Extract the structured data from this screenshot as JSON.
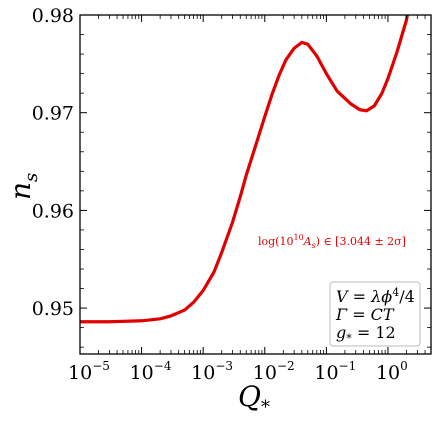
{
  "chart_data": {
    "type": "line",
    "title": "",
    "xlabel": "Q_*",
    "xlabel_main": "Q",
    "xlabel_sub": "*",
    "ylabel": "n_s",
    "ylabel_main": "n",
    "ylabel_sub": "s",
    "xscale": "log",
    "xlim": [
      1e-05,
      5
    ],
    "ylim": [
      0.9453,
      0.98
    ],
    "grid": false,
    "x_ticks": [
      {
        "base": "10",
        "exp": "−5",
        "value": 1e-05
      },
      {
        "base": "10",
        "exp": "−4",
        "value": 0.0001
      },
      {
        "base": "10",
        "exp": "−3",
        "value": 0.001
      },
      {
        "base": "10",
        "exp": "−2",
        "value": 0.01
      },
      {
        "base": "10",
        "exp": "−1",
        "value": 0.1
      },
      {
        "base": "10",
        "exp": "0",
        "value": 1
      }
    ],
    "y_ticks": [
      {
        "label": "0.95",
        "value": 0.95
      },
      {
        "label": "0.96",
        "value": 0.96
      },
      {
        "label": "0.97",
        "value": 0.97
      },
      {
        "label": "0.98",
        "value": 0.98
      }
    ],
    "series": [
      {
        "color": "#e00000",
        "points": [
          [
            1e-05,
            0.9486
          ],
          [
            3e-05,
            0.9486
          ],
          [
            0.0001,
            0.9487
          ],
          [
            0.0002,
            0.9489
          ],
          [
            0.0003,
            0.9492
          ],
          [
            0.0005,
            0.9498
          ],
          [
            0.0007,
            0.9506
          ],
          [
            0.001,
            0.9518
          ],
          [
            0.0015,
            0.9537
          ],
          [
            0.002,
            0.9557
          ],
          [
            0.003,
            0.9588
          ],
          [
            0.004,
            0.9614
          ],
          [
            0.005,
            0.9636
          ],
          [
            0.007,
            0.9665
          ],
          [
            0.01,
            0.9696
          ],
          [
            0.013,
            0.9718
          ],
          [
            0.017,
            0.9738
          ],
          [
            0.022,
            0.9754
          ],
          [
            0.03,
            0.9766
          ],
          [
            0.04,
            0.9772
          ],
          [
            0.05,
            0.977
          ],
          [
            0.07,
            0.9758
          ],
          [
            0.1,
            0.974
          ],
          [
            0.15,
            0.9722
          ],
          [
            0.25,
            0.9709
          ],
          [
            0.35,
            0.9703
          ],
          [
            0.45,
            0.9702
          ],
          [
            0.6,
            0.9707
          ],
          [
            0.8,
            0.972
          ],
          [
            1.0,
            0.9735
          ],
          [
            1.4,
            0.9762
          ],
          [
            2.0,
            0.9795
          ],
          [
            2.2,
            0.981
          ]
        ]
      }
    ],
    "annotation": "log(10^10 A_s) ∈ [3.044 ± 2σ]",
    "annotation_parts": {
      "pre": "log(10",
      "exp": "10",
      "mid": "A",
      "sub": "s",
      "post": ") ∈ [3.044 ± 2σ]"
    },
    "legend_box": {
      "position": "bottom-right",
      "lines": [
        {
          "pre": "V = λϕ",
          "sup": "4",
          "post": "/4"
        },
        {
          "pre": "Γ = CT",
          "sup": "",
          "post": ""
        },
        {
          "pre": "g",
          "sub": "*",
          "post": " = 12"
        }
      ]
    }
  }
}
